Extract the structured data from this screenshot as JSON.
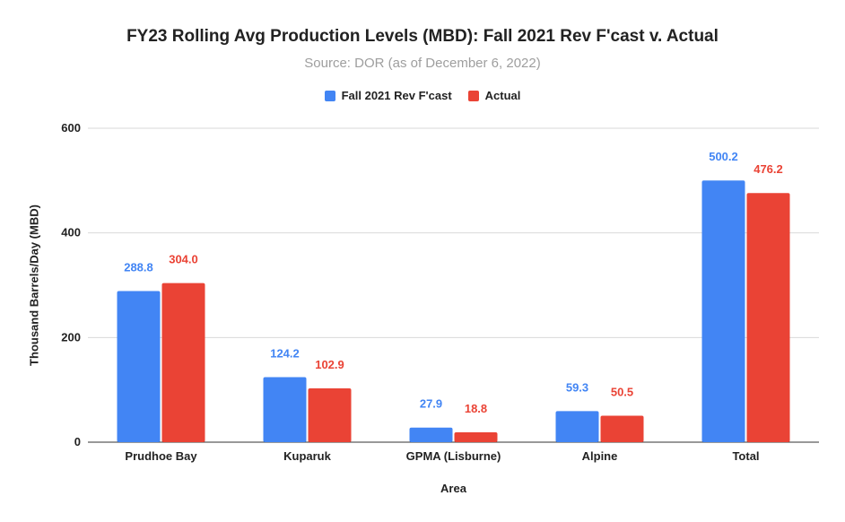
{
  "chart_data": {
    "type": "bar",
    "title": "FY23 Rolling Avg Production Levels (MBD): Fall 2021 Rev F'cast v. Actual",
    "subtitle": "Source: DOR (as of December 6, 2022)",
    "xlabel": "Area",
    "ylabel": "Thousand Barrels/Day (MBD)",
    "categories": [
      "Prudhoe Bay",
      "Kuparuk",
      "GPMA (Lisburne)",
      "Alpine",
      "Total"
    ],
    "series": [
      {
        "name": "Fall 2021 Rev F'cast",
        "color": "#4285f4",
        "values": [
          288.8,
          124.2,
          27.9,
          59.3,
          500.2
        ],
        "labels": [
          "288.8",
          "124.2",
          "27.9",
          "59.3",
          "500.2"
        ]
      },
      {
        "name": "Actual",
        "color": "#ea4335",
        "values": [
          304.0,
          102.9,
          18.8,
          50.5,
          476.2
        ],
        "labels": [
          "304.0",
          "102.9",
          "18.8",
          "50.5",
          "476.2"
        ]
      }
    ],
    "ylim": [
      0,
      600
    ],
    "yticks": [
      0,
      200,
      400,
      600
    ],
    "grid": true,
    "legend_position": "top"
  }
}
